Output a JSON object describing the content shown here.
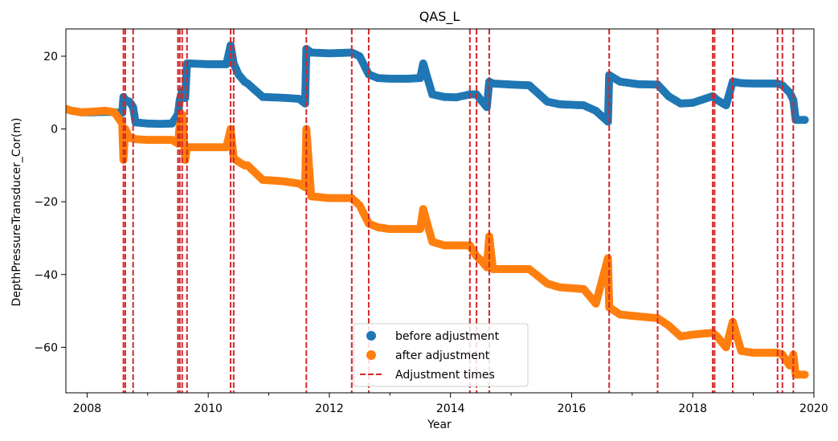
{
  "chart_data": {
    "type": "scatter",
    "title": "QAS_L",
    "xlabel": "Year",
    "ylabel": "DepthPressureTransducer_Cor(m)",
    "xlim": [
      2007.65,
      2020.0
    ],
    "ylim": [
      -72.5,
      27.5
    ],
    "x_ticks": [
      2008,
      2010,
      2012,
      2014,
      2016,
      2018,
      2020
    ],
    "x_tick_labels": [
      "2008",
      "2010",
      "2012",
      "2014",
      "2016",
      "2018",
      "2020"
    ],
    "y_ticks": [
      20,
      0,
      -20,
      -40,
      -60
    ],
    "y_tick_labels": [
      "20",
      "0",
      "−20",
      "−40",
      "−60"
    ],
    "grid": false,
    "legend_position": "bottom-center",
    "legend": [
      "before adjustment",
      "after adjustment",
      "Adjustment times"
    ],
    "colors": {
      "before": "#1f77b4",
      "after": "#ff7f0e",
      "adjust": "#d62728"
    },
    "adjustment_times": [
      2008.6,
      2008.63,
      2008.76,
      2009.5,
      2009.53,
      2009.57,
      2009.65,
      2010.37,
      2010.42,
      2011.62,
      2012.37,
      2012.65,
      2014.32,
      2014.43,
      2014.64,
      2016.62,
      2017.42,
      2018.33,
      2018.36,
      2018.66,
      2019.4,
      2019.48,
      2019.66
    ],
    "series": [
      {
        "name": "before adjustment",
        "x": [
          2007.65,
          2007.75,
          2007.9,
          2008.1,
          2008.3,
          2008.45,
          2008.58,
          2008.6,
          2008.63,
          2008.7,
          2008.76,
          2008.8,
          2009.0,
          2009.2,
          2009.4,
          2009.5,
          2009.53,
          2009.57,
          2009.62,
          2009.65,
          2009.7,
          2010.0,
          2010.3,
          2010.37,
          2010.42,
          2010.5,
          2010.6,
          2010.65,
          2010.9,
          2011.2,
          2011.5,
          2011.6,
          2011.62,
          2011.7,
          2012.0,
          2012.37,
          2012.5,
          2012.65,
          2012.8,
          2013.0,
          2013.3,
          2013.5,
          2013.55,
          2013.7,
          2013.9,
          2014.1,
          2014.32,
          2014.43,
          2014.5,
          2014.6,
          2014.64,
          2014.7,
          2015.0,
          2015.3,
          2015.6,
          2015.8,
          2016.2,
          2016.4,
          2016.6,
          2016.62,
          2016.8,
          2017.1,
          2017.42,
          2017.6,
          2017.8,
          2018.0,
          2018.33,
          2018.4,
          2018.55,
          2018.66,
          2018.8,
          2019.0,
          2019.4,
          2019.48,
          2019.6,
          2019.66,
          2019.7,
          2019.85
        ],
        "y": [
          5.5,
          5.0,
          4.6,
          4.6,
          4.7,
          4.6,
          4.4,
          8.8,
          8.0,
          7.5,
          6.0,
          1.8,
          1.5,
          1.4,
          1.5,
          4.0,
          8.0,
          10.5,
          8.5,
          18.0,
          18.0,
          17.8,
          17.8,
          23.0,
          18.0,
          15.0,
          13.0,
          12.5,
          8.8,
          8.6,
          8.3,
          7.0,
          22.0,
          21.0,
          20.8,
          21.0,
          20.0,
          15.0,
          14.0,
          13.8,
          13.8,
          14.0,
          18.0,
          9.5,
          8.8,
          8.7,
          9.5,
          9.5,
          8.0,
          6.0,
          13.0,
          12.5,
          12.2,
          12.0,
          7.5,
          6.8,
          6.5,
          5.0,
          2.0,
          14.8,
          13.0,
          12.3,
          12.2,
          9.0,
          7.0,
          7.2,
          9.0,
          8.0,
          6.5,
          13.0,
          12.6,
          12.5,
          12.5,
          12.0,
          10.0,
          8.0,
          2.5,
          2.5
        ]
      },
      {
        "name": "after adjustment",
        "x": [
          2007.65,
          2007.75,
          2007.9,
          2008.1,
          2008.3,
          2008.45,
          2008.58,
          2008.6,
          2008.63,
          2008.7,
          2008.76,
          2008.8,
          2009.0,
          2009.2,
          2009.4,
          2009.5,
          2009.53,
          2009.57,
          2009.62,
          2009.65,
          2009.7,
          2010.0,
          2010.3,
          2010.37,
          2010.42,
          2010.5,
          2010.6,
          2010.65,
          2010.9,
          2011.2,
          2011.5,
          2011.6,
          2011.62,
          2011.7,
          2012.0,
          2012.37,
          2012.5,
          2012.65,
          2012.8,
          2013.0,
          2013.3,
          2013.5,
          2013.55,
          2013.7,
          2013.9,
          2014.1,
          2014.32,
          2014.43,
          2014.5,
          2014.6,
          2014.64,
          2014.7,
          2015.0,
          2015.3,
          2015.6,
          2015.8,
          2016.2,
          2016.4,
          2016.6,
          2016.62,
          2016.8,
          2017.1,
          2017.42,
          2017.6,
          2017.8,
          2018.0,
          2018.33,
          2018.4,
          2018.55,
          2018.66,
          2018.8,
          2019.0,
          2019.4,
          2019.48,
          2019.6,
          2019.66,
          2019.7,
          2019.85
        ],
        "y": [
          5.5,
          5.0,
          4.6,
          4.8,
          5.0,
          4.6,
          1.5,
          -8.5,
          0.0,
          -2.5,
          -2.5,
          -2.8,
          -3.0,
          -3.0,
          -3.0,
          -4.0,
          1.0,
          4.0,
          -8.5,
          -5.0,
          -5.0,
          -5.0,
          -5.0,
          0.0,
          -8.0,
          -9.0,
          -10.0,
          -10.0,
          -14.0,
          -14.3,
          -15.0,
          -16.0,
          0.0,
          -18.5,
          -19.0,
          -19.0,
          -21.0,
          -26.0,
          -27.0,
          -27.5,
          -27.5,
          -27.5,
          -22.0,
          -31.0,
          -32.0,
          -32.0,
          -32.0,
          -35.0,
          -36.0,
          -38.0,
          -29.5,
          -38.5,
          -38.5,
          -38.5,
          -42.5,
          -43.5,
          -44.0,
          -48.0,
          -35.5,
          -49.0,
          -51.0,
          -51.5,
          -52.0,
          -54.0,
          -57.0,
          -56.5,
          -56.0,
          -57.0,
          -60.0,
          -53.0,
          -61.0,
          -61.5,
          -61.5,
          -62.0,
          -65.0,
          -62.0,
          -67.5,
          -67.5
        ]
      }
    ]
  }
}
